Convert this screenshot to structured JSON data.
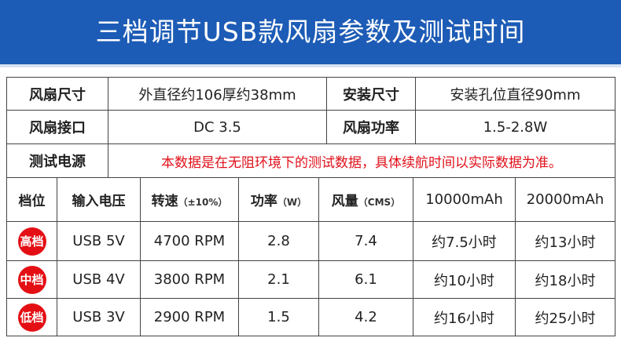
{
  "header": {
    "title": "三档调节USB款风扇参数及测试时间"
  },
  "specs": {
    "rows": [
      [
        "风扇尺寸",
        "外直径约106厚约38mm",
        "安装尺寸",
        "安装孔位直径90mm"
      ],
      [
        "风扇接口",
        "DC 3.5",
        "风扇功率",
        "1.5-2.8W"
      ]
    ],
    "note": {
      "label": "测试电源",
      "text": "本数据是在无阻环境下的测试数据，具体续航时间以实际数据为准。"
    }
  },
  "table": {
    "columns": [
      {
        "main": "档位"
      },
      {
        "main": "输入电压"
      },
      {
        "main": "转速",
        "sub": "（±10%）"
      },
      {
        "main": "功率",
        "sub": "（W）"
      },
      {
        "main": "风量",
        "sub": "（CMS）"
      },
      {
        "main": "10000mAh"
      },
      {
        "main": "20000mAh"
      }
    ],
    "rows": [
      [
        "高档",
        "USB 5V",
        "4700 RPM",
        "2.8",
        "7.4",
        "约7.5小时",
        "约13小时"
      ],
      [
        "中档",
        "USB 4V",
        "3800 RPM",
        "2.1",
        "6.1",
        "约10小时",
        "约18小时"
      ],
      [
        "低档",
        "USB 3V",
        "2900 RPM",
        "1.5",
        "4.2",
        "约16小时",
        "约25小时"
      ]
    ]
  }
}
